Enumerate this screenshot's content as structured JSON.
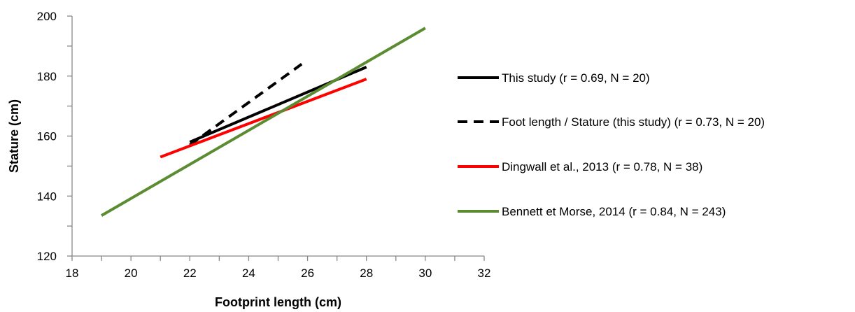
{
  "chart_data": {
    "type": "line",
    "xlabel": "Footprint length (cm)",
    "ylabel": "Stature (cm)",
    "xlim": [
      18,
      32
    ],
    "ylim": [
      120,
      200
    ],
    "xticks": [
      "18",
      "20",
      "22",
      "24",
      "26",
      "28",
      "30",
      "32"
    ],
    "yticks": [
      "120",
      "140",
      "160",
      "180",
      "200"
    ],
    "grid": false,
    "legend_position": "right",
    "series": [
      {
        "name": "This study (r = 0.69, N = 20)",
        "color": "#000000",
        "dash": "solid",
        "x": [
          22,
          28
        ],
        "y": [
          158,
          183
        ]
      },
      {
        "name": "Foot length / Stature (this study) (r = 0.73, N = 20)",
        "color": "#000000",
        "dash": "dashed",
        "x": [
          22,
          25.8
        ],
        "y": [
          157,
          184
        ]
      },
      {
        "name": "Dingwall et al., 2013 (r = 0.78, N = 38)",
        "color": "#ff0000",
        "dash": "solid",
        "x": [
          21,
          28
        ],
        "y": [
          153,
          179
        ]
      },
      {
        "name": "Bennett et Morse, 2014 (r = 0.84, N = 243)",
        "color": "#5b8c32",
        "dash": "solid",
        "x": [
          19,
          30
        ],
        "y": [
          133.5,
          196
        ]
      }
    ]
  }
}
